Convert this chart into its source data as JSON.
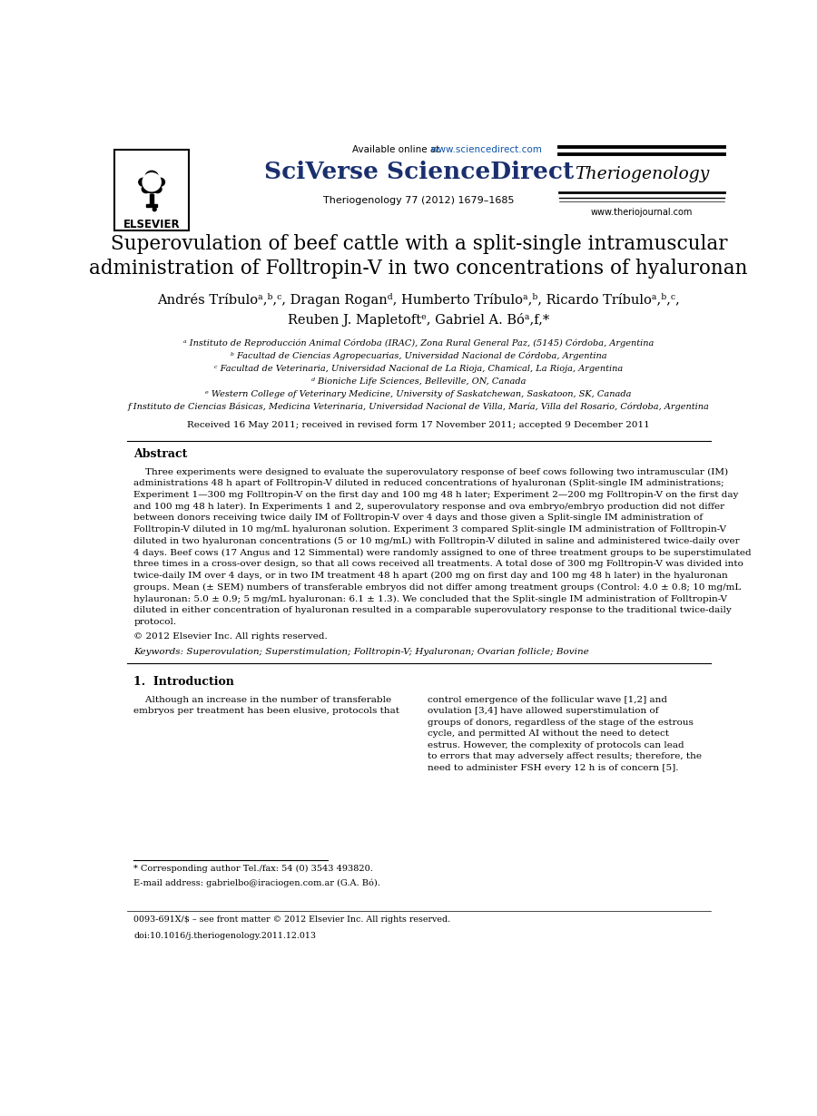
{
  "bg_color": "#ffffff",
  "title_line1": "Superovulation of beef cattle with a split-single intramuscular",
  "title_line2": "administration of Folltropin-V in two concentrations of hyaluronan",
  "header_available": "Available online at ",
  "header_url": "www.sciencedirect.com",
  "header_sciverse": "SciVerse ScienceDirect",
  "header_journal_name": "Theriogenology",
  "header_journal_ref": "Theriogenology 77 (2012) 1679–1685",
  "header_website": "www.theriojournal.com",
  "elsevier_text": "ELSEVIER",
  "authors_line1": "Andrés Tríbuloᵃ,ᵇ,ᶜ, Dragan Roganᵈ, Humberto Tríbuloᵃ,ᵇ, Ricardo Tríbuloᵃ,ᵇ,ᶜ,",
  "authors_line2": "Reuben J. Mapletoftᵉ, Gabriel A. Bóᵃ,f,*",
  "affil_a": "ᵃ Instituto de Reproducción Animal Córdoba (IRAC), Zona Rural General Paz, (5145) Córdoba, Argentina",
  "affil_b": "ᵇ Facultad de Ciencias Agropecuarias, Universidad Nacional de Córdoba, Argentina",
  "affil_c": "ᶜ Facultad de Veterinaria, Universidad Nacional de La Rioja, Chamical, La Rioja, Argentina",
  "affil_d": "ᵈ Bioniche Life Sciences, Belleville, ON, Canada",
  "affil_e": "ᵉ Western College of Veterinary Medicine, University of Saskatchewan, Saskatoon, SK, Canada",
  "affil_f": "f Instituto de Ciencias Básicas, Medicina Veterinaria, Universidad Nacional de Villa, María, Villa del Rosario, Córdoba, Argentina",
  "received": "Received 16 May 2011; received in revised form 17 November 2011; accepted 9 December 2011",
  "abstract_title": "Abstract",
  "abstract_lines": [
    "    Three experiments were designed to evaluate the superovulatory response of beef cows following two intramuscular (IM)",
    "administrations 48 h apart of Folltropin-V diluted in reduced concentrations of hyaluronan (Split-single IM administrations;",
    "Experiment 1—300 mg Folltropin-V on the first day and 100 mg 48 h later; Experiment 2—200 mg Folltropin-V on the first day",
    "and 100 mg 48 h later). In Experiments 1 and 2, superovulatory response and ova embryo/embryo production did not differ",
    "between donors receiving twice daily IM of Folltropin-V over 4 days and those given a Split-single IM administration of",
    "Folltropin-V diluted in 10 mg/mL hyaluronan solution. Experiment 3 compared Split-single IM administration of Folltropin-V",
    "diluted in two hyaluronan concentrations (5 or 10 mg/mL) with Folltropin-V diluted in saline and administered twice-daily over",
    "4 days. Beef cows (17 Angus and 12 Simmental) were randomly assigned to one of three treatment groups to be superstimulated",
    "three times in a cross-over design, so that all cows received all treatments. A total dose of 300 mg Folltropin-V was divided into",
    "twice-daily IM over 4 days, or in two IM treatment 48 h apart (200 mg on first day and 100 mg 48 h later) in the hyaluronan",
    "groups. Mean (± SEM) numbers of transferable embryos did not differ among treatment groups (Control: 4.0 ± 0.8; 10 mg/mL",
    "hylauronan: 5.0 ± 0.9; 5 mg/mL hyaluronan: 6.1 ± 1.3). We concluded that the Split-single IM administration of Folltropin-V",
    "diluted in either concentration of hyaluronan resulted in a comparable superovulatory response to the traditional twice-daily",
    "protocol."
  ],
  "copyright": "© 2012 Elsevier Inc. All rights reserved.",
  "keywords": "Keywords: Superovulation; Superstimulation; Folltropin-V; Hyaluronan; Ovarian follicle; Bovine",
  "section1_title": "1.  Introduction",
  "section1_col1_lines": [
    "    Although an increase in the number of transferable",
    "embryos per treatment has been elusive, protocols that"
  ],
  "section1_col2_lines": [
    "control emergence of the follicular wave [1,2] and",
    "ovulation [3,4] have allowed superstimulation of",
    "groups of donors, regardless of the stage of the estrous",
    "cycle, and permitted AI without the need to detect",
    "estrus. However, the complexity of protocols can lead",
    "to errors that may adversely affect results; therefore, the",
    "need to administer FSH every 12 h is of concern [5]."
  ],
  "footnote_star": "* Corresponding author Tel./fax: 54 (0) 3543 493820.",
  "footnote_email": "E-mail address: gabrielbo@iraciogen.com.ar (G.A. Bó).",
  "footer_issn": "0093-691X/$ – see front matter © 2012 Elsevier Inc. All rights reserved.",
  "footer_doi": "doi:10.1016/j.theriogenology.2011.12.013",
  "url_color": "#1155aa",
  "sciverse_color": "#1a2f6e",
  "text_color": "#000000",
  "gray_color": "#555555"
}
